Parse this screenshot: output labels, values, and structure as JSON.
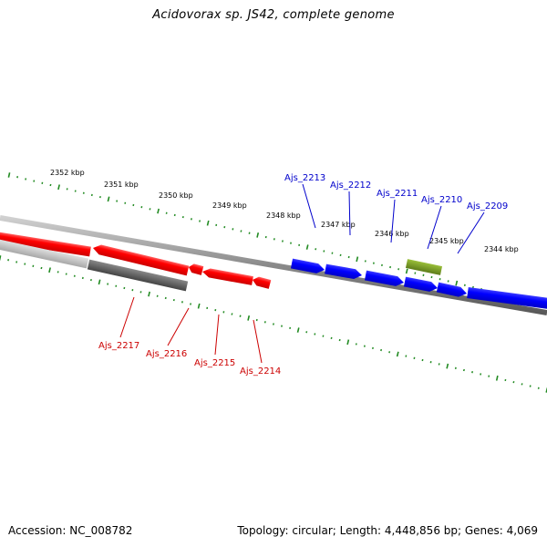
{
  "title": "Acidovorax sp. JS42, complete genome",
  "footer": {
    "accession": "Accession: NC_008782",
    "summary": "Topology: circular; Length: 4,448,856 bp; Genes: 4,069"
  },
  "scale_labels": [
    "2352 kbp",
    "2351 kbp",
    "2350 kbp",
    "2349 kbp",
    "2348 kbp",
    "2347 kbp",
    "2346 kbp",
    "2345 kbp",
    "2344 kbp"
  ],
  "genes_forward": [
    {
      "label": "Ajs_2213"
    },
    {
      "label": "Ajs_2212"
    },
    {
      "label": "Ajs_2211"
    },
    {
      "label": "Ajs_2210"
    },
    {
      "label": "Ajs_2209"
    }
  ],
  "genes_reverse": [
    {
      "label": "Ajs_2217"
    },
    {
      "label": "Ajs_2216"
    },
    {
      "label": "Ajs_2215"
    },
    {
      "label": "Ajs_2214"
    }
  ],
  "colors": {
    "forward_gene": "#0000ff",
    "reverse_gene": "#ff0000",
    "forward_label": "#0000cc",
    "reverse_label": "#cc0000",
    "rna_feature": "#6b8e23",
    "pseudo_feature": "#666666",
    "tick": "#228b22",
    "backbone": "#888888"
  }
}
